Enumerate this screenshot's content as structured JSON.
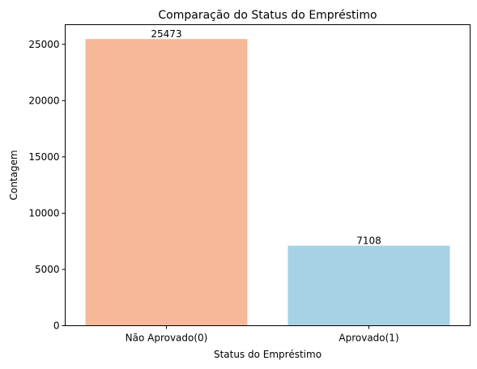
{
  "chart_data": {
    "type": "bar",
    "title": "Comparação do Status do Empréstimo",
    "xlabel": "Status do Empréstimo",
    "ylabel": "Contagem",
    "categories": [
      "Não Aprovado(0)",
      "Aprovado(1)"
    ],
    "values": [
      25473,
      7108
    ],
    "data_labels": [
      "25473",
      "7108"
    ],
    "colors": [
      "#f6b898",
      "#a6d2e6"
    ],
    "ylim": [
      0,
      26746.65
    ],
    "yticks": [
      0,
      5000,
      10000,
      15000,
      20000,
      25000
    ],
    "ytick_labels": [
      "0",
      "5000",
      "10000",
      "15000",
      "20000",
      "25000"
    ],
    "grid": false,
    "legend": "none"
  }
}
